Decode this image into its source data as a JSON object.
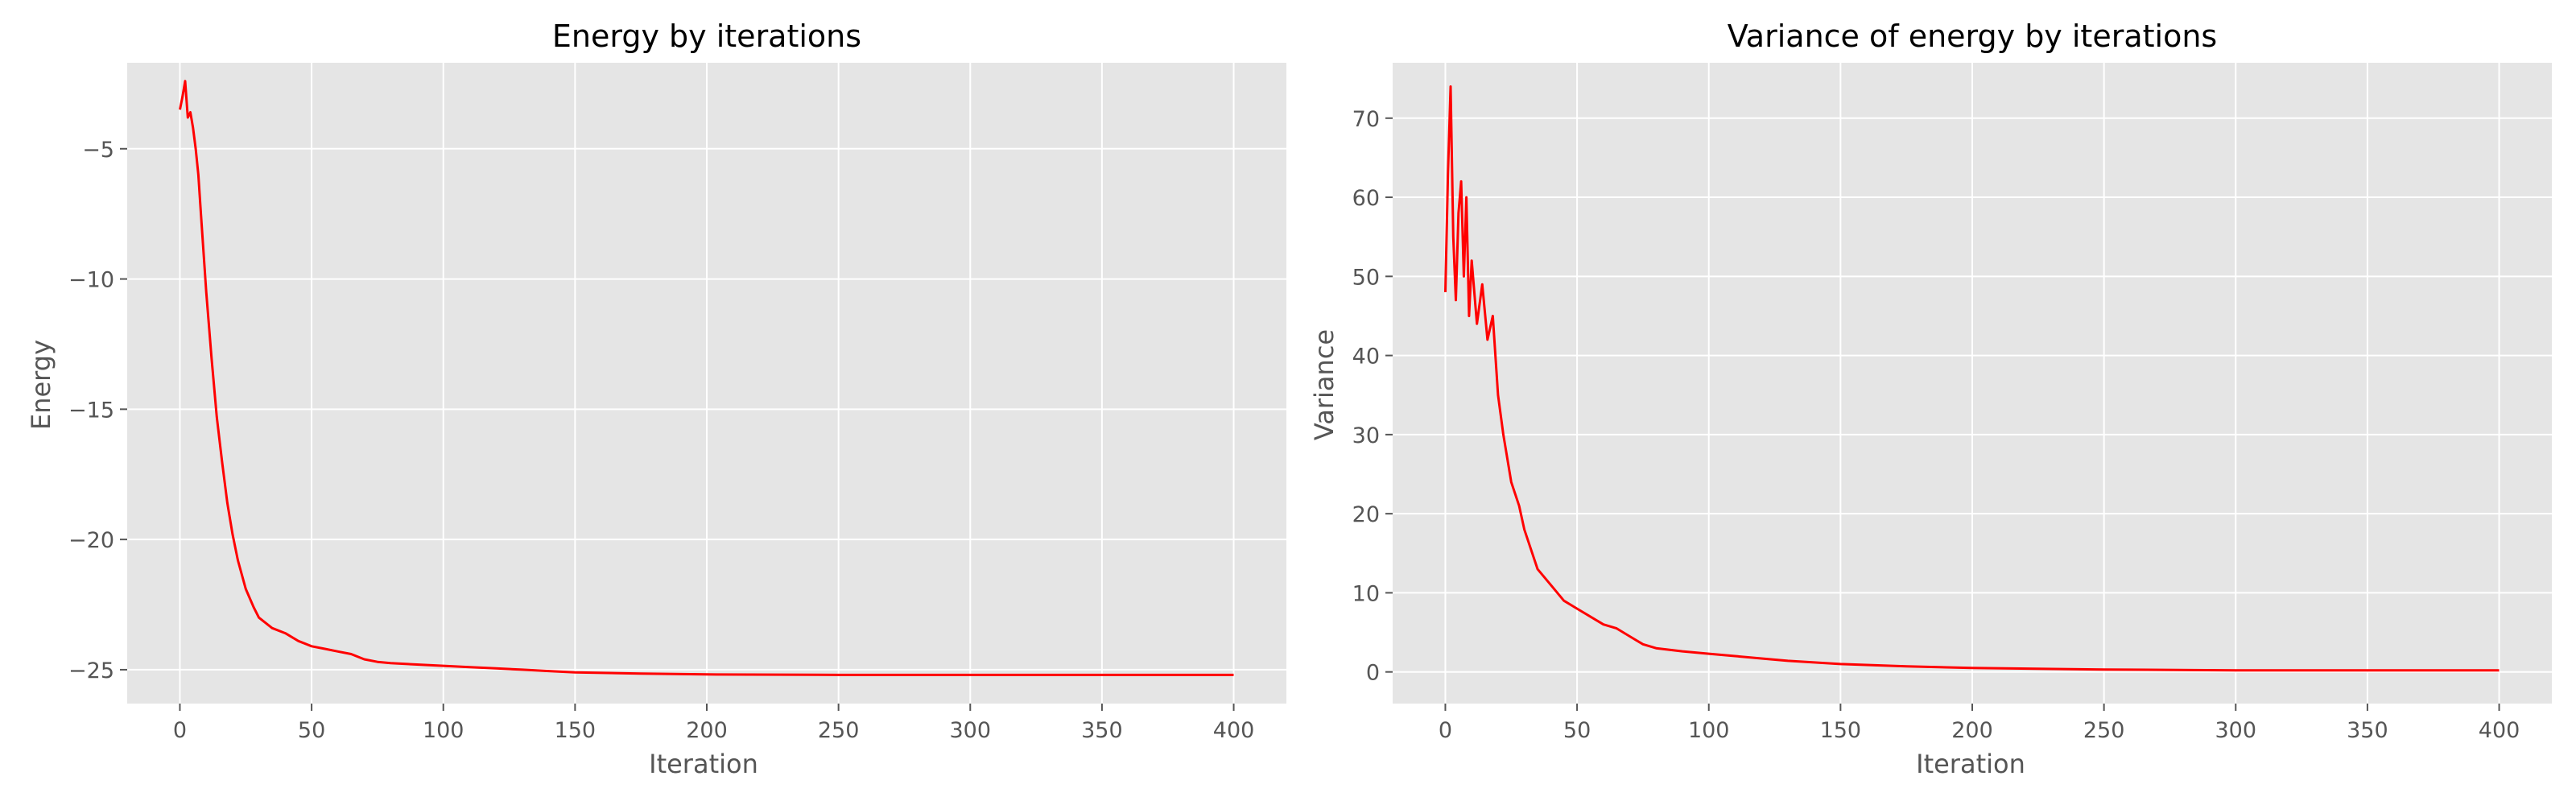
{
  "chart_data": [
    {
      "type": "line",
      "title": "Energy by iterations",
      "xlabel": "Iteration",
      "ylabel": "Energy",
      "xlim": [
        -20,
        420
      ],
      "ylim": [
        -26.3,
        -1.7
      ],
      "xticks": [
        0,
        50,
        100,
        150,
        200,
        250,
        300,
        350,
        400
      ],
      "yticks": [
        -25,
        -20,
        -15,
        -10,
        -5
      ],
      "ytick_labels": [
        "−25",
        "−20",
        "−15",
        "−10",
        "−5"
      ],
      "grid": true,
      "line_color": "#ff0000",
      "series": [
        {
          "x": [
            0,
            1,
            2,
            3,
            4,
            5,
            6,
            7,
            8,
            9,
            10,
            12,
            14,
            16,
            18,
            20,
            22,
            25,
            28,
            30,
            35,
            40,
            45,
            50,
            55,
            60,
            65,
            70,
            75,
            80,
            90,
            100,
            110,
            120,
            130,
            140,
            150,
            175,
            200,
            250,
            300,
            350,
            400
          ],
          "y": [
            -3.5,
            -3.0,
            -2.4,
            -3.8,
            -3.6,
            -4.2,
            -5.0,
            -6.0,
            -7.5,
            -9.0,
            -10.5,
            -13.0,
            -15.3,
            -17.0,
            -18.6,
            -19.8,
            -20.8,
            -21.9,
            -22.6,
            -23.0,
            -23.4,
            -23.6,
            -23.9,
            -24.1,
            -24.2,
            -24.3,
            -24.4,
            -24.6,
            -24.7,
            -24.75,
            -24.8,
            -24.85,
            -24.9,
            -24.95,
            -25.0,
            -25.05,
            -25.1,
            -25.15,
            -25.18,
            -25.2,
            -25.2,
            -25.2,
            -25.2
          ]
        }
      ]
    },
    {
      "type": "line",
      "title": "Variance of energy by iterations",
      "xlabel": "Iteration",
      "ylabel": "Variance",
      "xlim": [
        -20,
        420
      ],
      "ylim": [
        -4,
        77
      ],
      "xticks": [
        0,
        50,
        100,
        150,
        200,
        250,
        300,
        350,
        400
      ],
      "yticks": [
        0,
        10,
        20,
        30,
        40,
        50,
        60,
        70
      ],
      "ytick_labels": [
        "0",
        "10",
        "20",
        "30",
        "40",
        "50",
        "60",
        "70"
      ],
      "grid": true,
      "line_color": "#ff0000",
      "series": [
        {
          "x": [
            0,
            1,
            2,
            3,
            4,
            5,
            6,
            7,
            8,
            9,
            10,
            12,
            14,
            16,
            18,
            20,
            22,
            25,
            28,
            30,
            35,
            40,
            45,
            50,
            55,
            60,
            65,
            70,
            75,
            80,
            90,
            100,
            110,
            120,
            130,
            140,
            150,
            175,
            200,
            250,
            300,
            350,
            400
          ],
          "y": [
            48,
            63,
            74,
            55,
            47,
            58,
            62,
            50,
            60,
            45,
            52,
            44,
            49,
            42,
            45,
            35,
            30,
            24,
            21,
            18,
            13,
            11,
            9,
            8,
            7,
            6,
            5.5,
            4.5,
            3.5,
            3,
            2.6,
            2.3,
            2,
            1.7,
            1.4,
            1.2,
            1,
            0.7,
            0.5,
            0.3,
            0.2,
            0.2,
            0.2
          ]
        }
      ]
    }
  ]
}
